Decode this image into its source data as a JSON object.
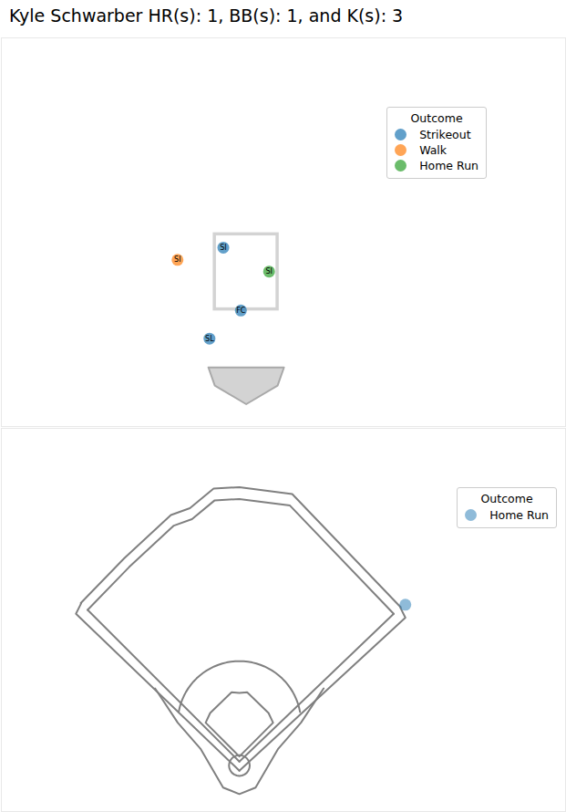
{
  "chart_data": [
    {
      "type": "scatter",
      "title": "Kyle Schwarber HR(s): 1, BB(s): 1, and K(s): 3",
      "legend_title": "Outcome",
      "legend": "upper right",
      "tick_labels": false,
      "xlim": [
        -4.6,
        6.0
      ],
      "ylim": [
        -0.6,
        6.7
      ],
      "strike_zone": {
        "x": [
          -0.59,
          0.59
        ],
        "y": [
          1.6,
          3.01
        ]
      },
      "home_plate": {
        "x": [
          -0.71,
          0.71,
          0.59,
          0,
          -0.59
        ],
        "y": [
          0.51,
          0.51,
          0.17,
          -0.18,
          0.17
        ]
      },
      "series": [
        {
          "name": "Strikeout",
          "color": "#1f77b4",
          "x": [
            -0.43,
            -0.1,
            -0.69
          ],
          "y": [
            2.76,
            1.58,
            1.05
          ],
          "pitch_types": [
            "SI",
            "FC",
            "SL"
          ]
        },
        {
          "name": "Walk",
          "color": "#ff7f0e",
          "x": [
            -1.29
          ],
          "y": [
            2.53
          ],
          "pitch_types": [
            "SI"
          ]
        },
        {
          "name": "Home Run",
          "color": "#2ca02c",
          "x": [
            0.43
          ],
          "y": [
            2.31
          ],
          "pitch_types": [
            "SI"
          ]
        }
      ]
    },
    {
      "type": "spray",
      "legend_title": "Outcome",
      "legend": "upper right",
      "tick_labels": false,
      "xlim": [
        -367,
        503
      ],
      "ylim": [
        -77,
        514
      ],
      "series": [
        {
          "name": "Home Run",
          "color": "#1f77b4",
          "x": [
            256
          ],
          "y": [
            242
          ]
        }
      ]
    }
  ]
}
